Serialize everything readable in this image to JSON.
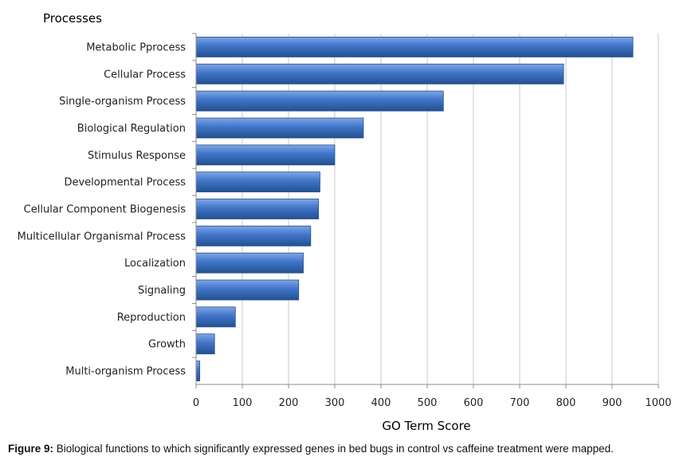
{
  "colors": {
    "bar_light": "#7fa6e6",
    "bar_mid": "#3f74c8",
    "bar_dark": "#24508f",
    "grid": "#c8c8c8",
    "axis": "#8c8c8c"
  },
  "caption": {
    "label": "Figure 9:",
    "text": " Biological functions to which significantly expressed genes in bed bugs in control vs caffeine treatment were mapped."
  },
  "chart_data": {
    "type": "bar",
    "orientation": "horizontal",
    "title": "Processes",
    "xlabel": "GO Term Score",
    "ylabel": "",
    "xlim": [
      0,
      1000
    ],
    "x_ticks": [
      0,
      100,
      200,
      300,
      400,
      500,
      600,
      700,
      800,
      900,
      1000
    ],
    "grid": "vertical",
    "categories": [
      "Metabolic Pprocess",
      "Cellular Process",
      "Single-organism Process",
      "Biological Regulation",
      "Stimulus Response",
      "Developmental Process",
      "Cellular Component Biogenesis",
      "Multicellular Organismal Process",
      "Localization",
      "Signaling",
      "Reproduction",
      "Growth",
      "Multi-organism Process"
    ],
    "values": [
      945,
      795,
      535,
      362,
      300,
      268,
      265,
      248,
      232,
      222,
      85,
      40,
      8
    ]
  }
}
